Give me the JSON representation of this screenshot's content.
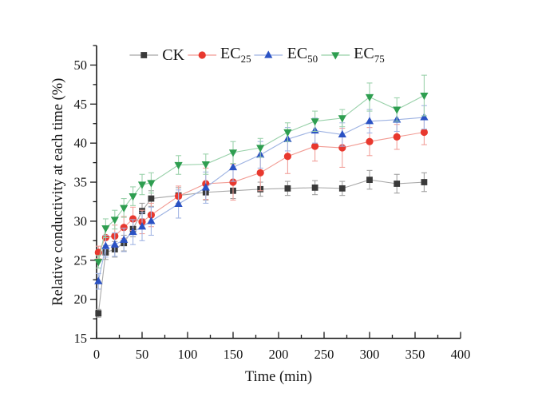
{
  "figure": {
    "background": "#ffffff"
  },
  "chart_data": {
    "type": "line",
    "title": "",
    "xlabel": "Time (min)",
    "ylabel": "Relative conductivity at each time (%)",
    "xlim": [
      0,
      400
    ],
    "ylim": [
      15,
      52.5
    ],
    "x_major_step": 50,
    "x_minor_step": 25,
    "y_major_step": 5,
    "y_minor_step": 2.5,
    "grid": false,
    "legend_position": "top-center",
    "x_ticks": [
      "0",
      "50",
      "100",
      "150",
      "200",
      "250",
      "300",
      "350",
      "400"
    ],
    "y_ticks": [
      "15",
      "20",
      "25",
      "30",
      "35",
      "40",
      "45",
      "50"
    ],
    "x": [
      2,
      10,
      20,
      30,
      40,
      50,
      60,
      90,
      120,
      150,
      180,
      210,
      240,
      270,
      300,
      330,
      360
    ],
    "series": [
      {
        "name": "ck",
        "label_base": "CK",
        "label_sub": "",
        "marker": "square",
        "marker_color": "#3a3a3a",
        "line_color": "#a8a8a8",
        "error_color": "#a0a0a0",
        "values": [
          18.2,
          26.0,
          26.4,
          27.2,
          29.0,
          31.3,
          32.9,
          33.3,
          33.7,
          33.9,
          34.1,
          34.2,
          34.3,
          34.2,
          35.3,
          34.8,
          35.0
        ],
        "errors": [
          0.5,
          0.9,
          1.0,
          1.0,
          1.0,
          1.0,
          1.0,
          1.0,
          1.0,
          1.0,
          0.9,
          0.9,
          0.9,
          0.9,
          1.2,
          1.2,
          1.2
        ]
      },
      {
        "name": "ec25",
        "label_base": "EC",
        "label_sub": "25",
        "marker": "circle",
        "marker_color": "#e8382e",
        "line_color": "#f29b93",
        "error_color": "#f2a09a",
        "values": [
          26.0,
          27.9,
          28.1,
          29.2,
          30.3,
          29.9,
          30.8,
          33.2,
          34.8,
          35.0,
          36.2,
          38.3,
          39.6,
          39.4,
          40.2,
          40.8,
          41.4
        ],
        "errors": [
          0.8,
          1.2,
          1.4,
          1.4,
          1.5,
          1.5,
          1.5,
          1.3,
          2.0,
          2.3,
          2.3,
          2.2,
          1.9,
          2.5,
          1.8,
          1.6,
          1.6
        ]
      },
      {
        "name": "ec50",
        "label_base": "EC",
        "label_sub": "50",
        "marker": "triangle-up",
        "marker_color": "#2a52c4",
        "line_color": "#9db2e2",
        "error_color": "#a3b6e4",
        "values": [
          22.3,
          26.8,
          27.0,
          27.6,
          28.6,
          29.3,
          30.0,
          32.2,
          34.3,
          36.9,
          38.5,
          40.5,
          41.6,
          41.1,
          42.8,
          43.0,
          43.3
        ],
        "errors": [
          1.0,
          1.4,
          1.5,
          1.5,
          1.6,
          1.8,
          1.8,
          1.8,
          2.0,
          1.8,
          1.7,
          1.5,
          1.6,
          1.5,
          1.5,
          1.5,
          1.5
        ]
      },
      {
        "name": "ec75",
        "label_base": "EC",
        "label_sub": "75",
        "marker": "triangle-down",
        "marker_color": "#2e9e50",
        "line_color": "#97d0a8",
        "error_color": "#9cd2ac",
        "values": [
          24.8,
          29.1,
          30.2,
          31.7,
          33.2,
          34.7,
          34.9,
          37.2,
          37.3,
          38.8,
          39.4,
          41.4,
          42.8,
          43.2,
          45.9,
          44.3,
          46.1
        ],
        "errors": [
          0.8,
          1.2,
          1.2,
          1.2,
          1.2,
          1.3,
          1.3,
          1.2,
          1.3,
          1.4,
          1.2,
          1.2,
          1.3,
          1.1,
          1.8,
          1.5,
          2.6
        ]
      }
    ]
  }
}
